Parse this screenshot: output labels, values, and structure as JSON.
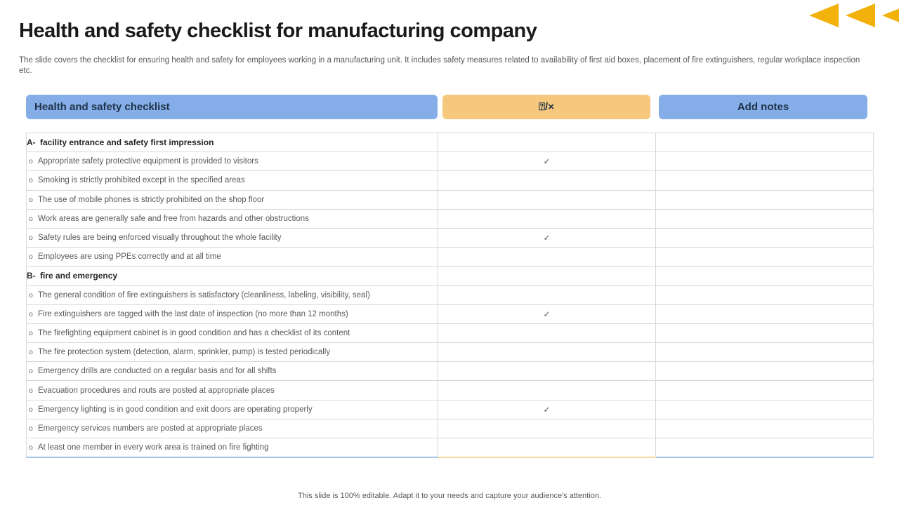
{
  "header": {
    "title": "Health and safety checklist for manufacturing company",
    "subtitle": "The slide covers the checklist for ensuring health and safety for employees working in a manufacturing unit. It includes safety measures related to availability of first aid boxes, placement of fire extinguishers, regular workplace inspection etc."
  },
  "decor": {
    "arrow_icon": "left-triangle",
    "arrow_count": 3
  },
  "colors": {
    "blue": "#85AEE8",
    "orange": "#F6C87D",
    "gold": "#F2B10B",
    "border": "#D9D9D9",
    "text_gray": "#595959",
    "text_dark": "#1A1A1A",
    "bottom_blue": "#A9C7E8",
    "bottom_yellow": "#F2DCA2"
  },
  "buttons": {
    "checklist": "Health and safety checklist",
    "status": "⍰/×",
    "add_notes": "Add notes"
  },
  "table": {
    "check_symbol": "✓",
    "rows": [
      {
        "type": "section",
        "prefix": "A-",
        "text": "facility entrance and safety first impression",
        "checked": false
      },
      {
        "type": "item",
        "prefix": "o",
        "text": "Appropriate safety protective equipment is provided to visitors",
        "checked": true
      },
      {
        "type": "item",
        "prefix": "o",
        "text": "Smoking is strictly prohibited except in the specified areas",
        "checked": false
      },
      {
        "type": "item",
        "prefix": "o",
        "text": "The use of mobile phones is strictly prohibited on the shop floor",
        "checked": false
      },
      {
        "type": "item",
        "prefix": "o",
        "text": "Work areas are generally safe and free from hazards and other obstructions",
        "checked": false
      },
      {
        "type": "item",
        "prefix": "o",
        "text": "Safety rules are being enforced visually throughout the whole facility",
        "checked": true
      },
      {
        "type": "item",
        "prefix": "o",
        "text": "Employees are using PPEs correctly and at all time",
        "checked": false
      },
      {
        "type": "section",
        "prefix": "B-",
        "text": "fire and emergency",
        "checked": false
      },
      {
        "type": "item",
        "prefix": "o",
        "text": "The general condition of fire extinguishers is satisfactory (cleanliness, labeling, visibility, seal)",
        "checked": false
      },
      {
        "type": "item",
        "prefix": "o",
        "text": "Fire extinguishers are tagged with the last date of inspection (no more than 12 months)",
        "checked": true
      },
      {
        "type": "item",
        "prefix": "o",
        "text": "The firefighting equipment cabinet is in good condition and has a checklist of its content",
        "checked": false
      },
      {
        "type": "item",
        "prefix": "o",
        "text": "The fire protection system (detection, alarm,  sprinkler, pump) is tested periodically",
        "checked": false
      },
      {
        "type": "item",
        "prefix": "o",
        "text": "Emergency drills are conducted on a regular basis and for all shifts",
        "checked": false
      },
      {
        "type": "item",
        "prefix": "o",
        "text": "Evacuation procedures and routs are posted at appropriate places",
        "checked": false
      },
      {
        "type": "item",
        "prefix": "o",
        "text": "Emergency lighting is in good condition and exit  doors are operating properly",
        "checked": true
      },
      {
        "type": "item",
        "prefix": "o",
        "text": "Emergency services numbers are posted at appropriate places",
        "checked": false
      },
      {
        "type": "item",
        "prefix": "o",
        "text": "At  least one member in every work area is trained on fire fighting",
        "checked": false
      }
    ]
  },
  "footer": {
    "note": "This slide is 100% editable.  Adapt it to your needs and capture your audience's attention."
  }
}
